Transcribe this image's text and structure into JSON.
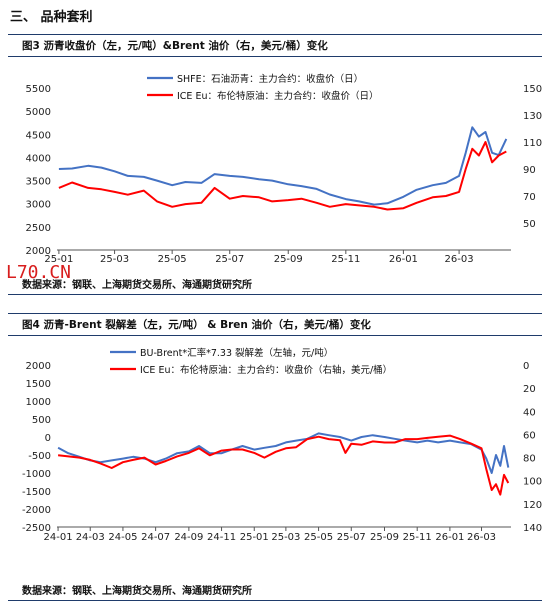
{
  "section_title": "三、 品种套利",
  "stamp_text": "L70.CN",
  "charts": [
    {
      "fig_title": "图3    沥青收盘价（左，元/吨）&Brent 油价（右，美元/桶）变化",
      "source": "数据来源：钢联、上海期货交易所、海通期货研究所"
    },
    {
      "fig_title": "图4    沥青-Brent 裂解差（左，元/吨）  & Bren 油价（右，美元/桶）变化",
      "source": "数据来源：钢联、上海期货交易所、海通期货研究所"
    }
  ],
  "chart_data": [
    {
      "type": "line",
      "x_ticks": [
        "25-01",
        "25-03",
        "25-05",
        "25-07",
        "25-09",
        "25-11",
        "26-01",
        "26-03"
      ],
      "x_range": [
        "2024-12-30",
        "2026-04-25"
      ],
      "y_left": {
        "min": 2000,
        "max": 5500,
        "ticks": [
          2000,
          2500,
          3000,
          3500,
          4000,
          4500,
          5000,
          5500
        ]
      },
      "y_right": {
        "min": 30,
        "max": 150,
        "ticks": [
          50,
          70,
          90,
          110,
          130,
          150
        ]
      },
      "legend": "top-left",
      "series": [
        {
          "name": "SHFE：石油沥青：主力合约：收盘价（日）",
          "axis": "left",
          "color": "#4472c4",
          "points": [
            [
              "2025-01-01",
              3750
            ],
            [
              "2025-01-15",
              3760
            ],
            [
              "2025-02-01",
              3820
            ],
            [
              "2025-02-15",
              3780
            ],
            [
              "2025-03-01",
              3700
            ],
            [
              "2025-03-15",
              3600
            ],
            [
              "2025-04-01",
              3580
            ],
            [
              "2025-04-15",
              3500
            ],
            [
              "2025-05-01",
              3400
            ],
            [
              "2025-05-15",
              3470
            ],
            [
              "2025-06-01",
              3450
            ],
            [
              "2025-06-15",
              3640
            ],
            [
              "2025-07-01",
              3600
            ],
            [
              "2025-07-15",
              3580
            ],
            [
              "2025-08-01",
              3530
            ],
            [
              "2025-08-15",
              3500
            ],
            [
              "2025-09-01",
              3420
            ],
            [
              "2025-09-15",
              3380
            ],
            [
              "2025-10-01",
              3320
            ],
            [
              "2025-10-15",
              3200
            ],
            [
              "2025-11-01",
              3100
            ],
            [
              "2025-11-15",
              3050
            ],
            [
              "2025-12-01",
              2980
            ],
            [
              "2025-12-15",
              3010
            ],
            [
              "2026-01-01",
              3150
            ],
            [
              "2026-01-15",
              3300
            ],
            [
              "2026-02-01",
              3400
            ],
            [
              "2026-02-15",
              3450
            ],
            [
              "2026-03-01",
              3600
            ],
            [
              "2026-03-08",
              4100
            ],
            [
              "2026-03-15",
              4650
            ],
            [
              "2026-03-22",
              4450
            ],
            [
              "2026-03-29",
              4550
            ],
            [
              "2026-04-05",
              4100
            ],
            [
              "2026-04-12",
              4050
            ],
            [
              "2026-04-20",
              4400
            ]
          ]
        },
        {
          "name": "ICE Eu：布伦特原油：主力合约：收盘价（日）",
          "axis": "right",
          "color": "#ff0000",
          "points": [
            [
              "2025-01-01",
              76
            ],
            [
              "2025-01-15",
              80
            ],
            [
              "2025-02-01",
              76
            ],
            [
              "2025-02-15",
              75
            ],
            [
              "2025-03-01",
              73
            ],
            [
              "2025-03-15",
              71
            ],
            [
              "2025-04-01",
              74
            ],
            [
              "2025-04-15",
              66
            ],
            [
              "2025-05-01",
              62
            ],
            [
              "2025-05-15",
              64
            ],
            [
              "2025-06-01",
              65
            ],
            [
              "2025-06-15",
              76
            ],
            [
              "2025-07-01",
              68
            ],
            [
              "2025-07-15",
              70
            ],
            [
              "2025-08-01",
              69
            ],
            [
              "2025-08-15",
              66
            ],
            [
              "2025-09-01",
              67
            ],
            [
              "2025-09-15",
              68
            ],
            [
              "2025-10-01",
              65
            ],
            [
              "2025-10-15",
              62
            ],
            [
              "2025-11-01",
              64
            ],
            [
              "2025-11-15",
              63
            ],
            [
              "2025-12-01",
              62
            ],
            [
              "2025-12-15",
              60
            ],
            [
              "2026-01-01",
              61
            ],
            [
              "2026-01-15",
              65
            ],
            [
              "2026-02-01",
              69
            ],
            [
              "2026-02-15",
              70
            ],
            [
              "2026-03-01",
              73
            ],
            [
              "2026-03-08",
              90
            ],
            [
              "2026-03-15",
              105
            ],
            [
              "2026-03-22",
              100
            ],
            [
              "2026-03-29",
              110
            ],
            [
              "2026-04-05",
              95
            ],
            [
              "2026-04-12",
              100
            ],
            [
              "2026-04-20",
              103
            ]
          ]
        }
      ]
    },
    {
      "type": "line",
      "x_ticks": [
        "24-01",
        "24-03",
        "24-05",
        "24-07",
        "24-09",
        "24-11",
        "25-01",
        "25-03",
        "25-05",
        "25-07",
        "25-09",
        "25-11",
        "26-01",
        "26-03"
      ],
      "x_range": [
        "2023-12-30",
        "2026-04-25"
      ],
      "y_left": {
        "min": -2500,
        "max": 2000,
        "ticks": [
          -2500,
          -2000,
          -1500,
          -1000,
          -500,
          0,
          500,
          1000,
          1500,
          2000
        ]
      },
      "y_right": {
        "min": 0,
        "max": 140,
        "ticks": [
          0,
          20,
          40,
          60,
          80,
          100,
          120,
          140
        ],
        "inverted": true
      },
      "legend": "top-left",
      "series": [
        {
          "name": "BU-Brent*汇率*7.33 裂解差（左轴，元/吨）",
          "axis": "left",
          "color": "#4472c4",
          "points": [
            [
              "2024-01-01",
              -300
            ],
            [
              "2024-01-20",
              -450
            ],
            [
              "2024-02-10",
              -550
            ],
            [
              "2024-03-01",
              -650
            ],
            [
              "2024-03-20",
              -700
            ],
            [
              "2024-04-10",
              -650
            ],
            [
              "2024-05-01",
              -600
            ],
            [
              "2024-05-20",
              -550
            ],
            [
              "2024-06-10",
              -600
            ],
            [
              "2024-07-01",
              -700
            ],
            [
              "2024-07-20",
              -600
            ],
            [
              "2024-08-10",
              -450
            ],
            [
              "2024-09-01",
              -400
            ],
            [
              "2024-09-20",
              -250
            ],
            [
              "2024-10-10",
              -450
            ],
            [
              "2024-11-01",
              -450
            ],
            [
              "2024-11-20",
              -350
            ],
            [
              "2024-12-10",
              -250
            ],
            [
              "2025-01-01",
              -350
            ],
            [
              "2025-01-20",
              -300
            ],
            [
              "2025-02-10",
              -250
            ],
            [
              "2025-03-01",
              -150
            ],
            [
              "2025-03-20",
              -100
            ],
            [
              "2025-04-10",
              -50
            ],
            [
              "2025-05-01",
              100
            ],
            [
              "2025-05-20",
              50
            ],
            [
              "2025-06-10",
              0
            ],
            [
              "2025-07-01",
              -100
            ],
            [
              "2025-07-20",
              0
            ],
            [
              "2025-08-10",
              50
            ],
            [
              "2025-09-01",
              0
            ],
            [
              "2025-09-20",
              -50
            ],
            [
              "2025-10-10",
              -100
            ],
            [
              "2025-11-01",
              -150
            ],
            [
              "2025-11-20",
              -100
            ],
            [
              "2025-12-10",
              -150
            ],
            [
              "2026-01-01",
              -100
            ],
            [
              "2026-01-20",
              -150
            ],
            [
              "2026-02-10",
              -200
            ],
            [
              "2026-03-01",
              -350
            ],
            [
              "2026-03-10",
              -600
            ],
            [
              "2026-03-20",
              -1000
            ],
            [
              "2026-03-28",
              -500
            ],
            [
              "2026-04-05",
              -800
            ],
            [
              "2026-04-12",
              -250
            ],
            [
              "2026-04-20",
              -850
            ]
          ]
        },
        {
          "name": "ICE Eu：布伦特原油：主力合约：收盘价（右轴，美元/桶）",
          "axis": "right",
          "color": "#ff0000",
          "points": [
            [
              "2024-01-01",
              78
            ],
            [
              "2024-01-20",
              79
            ],
            [
              "2024-02-10",
              80
            ],
            [
              "2024-03-01",
              82
            ],
            [
              "2024-03-20",
              85
            ],
            [
              "2024-04-10",
              89
            ],
            [
              "2024-05-01",
              84
            ],
            [
              "2024-05-20",
              82
            ],
            [
              "2024-06-10",
              80
            ],
            [
              "2024-07-01",
              86
            ],
            [
              "2024-07-20",
              83
            ],
            [
              "2024-08-10",
              79
            ],
            [
              "2024-09-01",
              76
            ],
            [
              "2024-09-20",
              72
            ],
            [
              "2024-10-10",
              78
            ],
            [
              "2024-11-01",
              74
            ],
            [
              "2024-11-20",
              73
            ],
            [
              "2024-12-10",
              73
            ],
            [
              "2025-01-01",
              76
            ],
            [
              "2025-01-20",
              80
            ],
            [
              "2025-02-10",
              75
            ],
            [
              "2025-03-01",
              72
            ],
            [
              "2025-03-20",
              71
            ],
            [
              "2025-04-10",
              64
            ],
            [
              "2025-05-01",
              62
            ],
            [
              "2025-05-20",
              64
            ],
            [
              "2025-06-10",
              65
            ],
            [
              "2025-06-20",
              76
            ],
            [
              "2025-07-01",
              68
            ],
            [
              "2025-07-20",
              69
            ],
            [
              "2025-08-10",
              66
            ],
            [
              "2025-09-01",
              67
            ],
            [
              "2025-09-20",
              67
            ],
            [
              "2025-10-10",
              64
            ],
            [
              "2025-11-01",
              64
            ],
            [
              "2025-11-20",
              63
            ],
            [
              "2025-12-10",
              62
            ],
            [
              "2026-01-01",
              61
            ],
            [
              "2026-01-20",
              64
            ],
            [
              "2026-02-10",
              68
            ],
            [
              "2026-03-01",
              72
            ],
            [
              "2026-03-10",
              90
            ],
            [
              "2026-03-20",
              108
            ],
            [
              "2026-03-28",
              103
            ],
            [
              "2026-04-05",
              112
            ],
            [
              "2026-04-12",
              95
            ],
            [
              "2026-04-20",
              102
            ]
          ]
        }
      ]
    }
  ]
}
